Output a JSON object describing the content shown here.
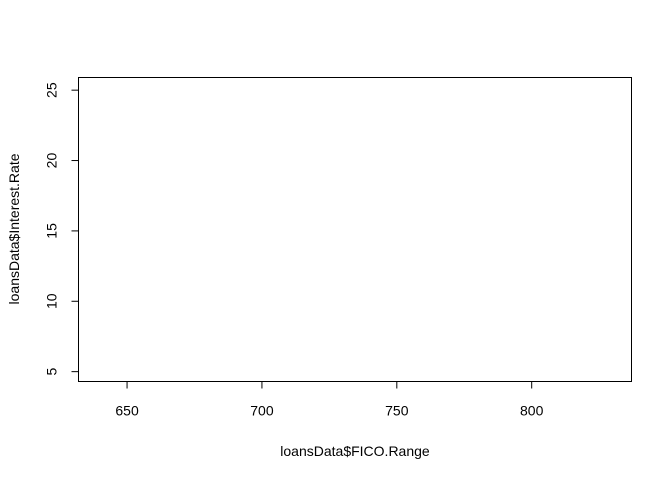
{
  "chart_data": {
    "type": "scatter",
    "title": "",
    "xlabel": "loansData$FICO.Range",
    "ylabel": "loansData$Interest.Rate",
    "xlim": [
      632,
      837
    ],
    "ylim": [
      4.3,
      25.9
    ],
    "x_ticks": [
      650,
      700,
      750,
      800
    ],
    "y_ticks": [
      5,
      10,
      15,
      20,
      25
    ],
    "grid": false,
    "legend": "none",
    "points": []
  }
}
